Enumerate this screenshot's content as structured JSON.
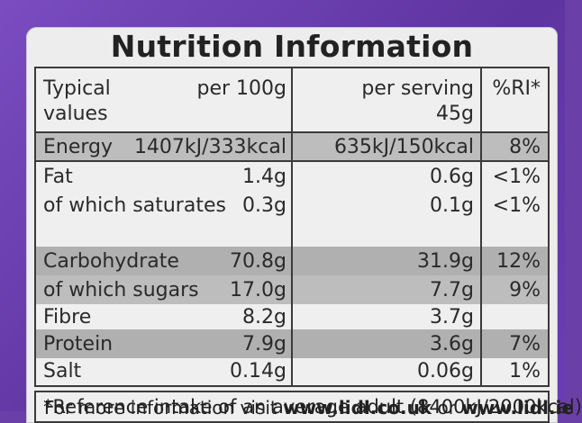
{
  "title": "Nutrition Information",
  "header": {
    "col1_line1": "Typical",
    "col1_line2": "values",
    "col2": "per 100g",
    "col3_line1": "per serving",
    "col3_line2": "45g",
    "col4": "%RI*"
  },
  "rows": [
    {
      "name": "Energy",
      "per100": "1407kJ/333kcal",
      "serving": "635kJ/150kcal",
      "ri": "8%"
    },
    {
      "name": "Fat",
      "per100": "1.4g",
      "serving": "0.6g",
      "ri": "<1%"
    },
    {
      "name": "of which saturates",
      "per100": "0.3g",
      "serving": "0.1g",
      "ri": "<1%"
    },
    {
      "name": "Carbohydrate",
      "per100": "70.8g",
      "serving": "31.9g",
      "ri": "12%"
    },
    {
      "name": "of which sugars",
      "per100": "17.0g",
      "serving": "7.7g",
      "ri": "9%"
    },
    {
      "name": "Fibre",
      "per100": "8.2g",
      "serving": "3.7g",
      "ri": ""
    },
    {
      "name": "Protein",
      "per100": "7.9g",
      "serving": "3.6g",
      "ri": "7%"
    },
    {
      "name": "Salt",
      "per100": "0.14g",
      "serving": "0.06g",
      "ri": "1%"
    }
  ],
  "footnote": "*Reference intake of an average adult (8400kJ/2000kcal)",
  "more_info": {
    "prefix": "For more information visit ",
    "url1": "www.lidl.co.uk",
    "middle": " or ",
    "url2": "www.lidl.ie"
  }
}
